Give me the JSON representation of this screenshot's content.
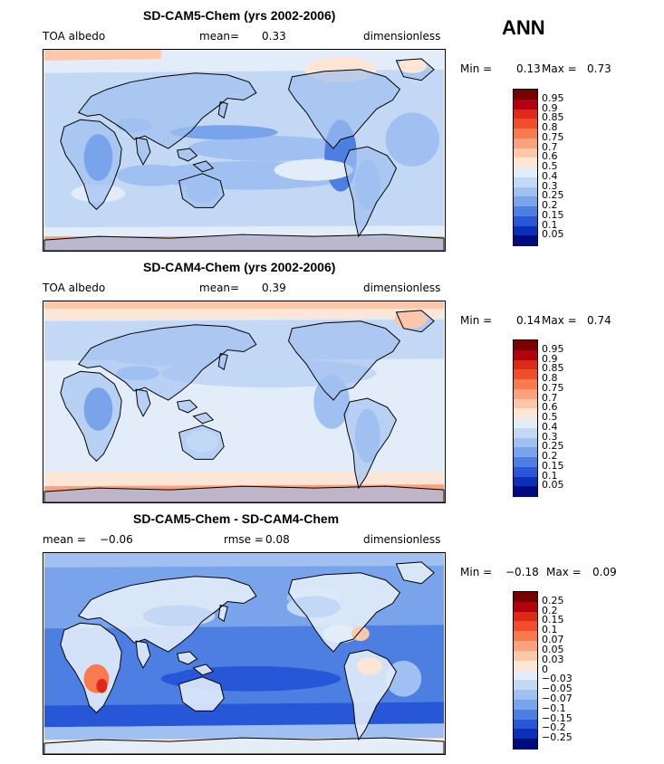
{
  "season_label": "ANN",
  "chart_data": [
    {
      "type": "heatmap",
      "title": "SD-CAM5-Chem (yrs 2002-2006)",
      "variable": "TOA albedo",
      "mean_label": "mean=",
      "mean_value": "0.33",
      "units": "dimensionless",
      "min_label": "Min =",
      "min_value": "0.13",
      "max_label": "Max =",
      "max_value": "0.73",
      "levels": [
        "0.95",
        "0.9",
        "0.85",
        "0.8",
        "0.75",
        "0.7",
        "0.6",
        "0.5",
        "0.4",
        "0.3",
        "0.25",
        "0.2",
        "0.15",
        "0.1",
        "0.05"
      ],
      "colors": [
        "#7a0000",
        "#b2000e",
        "#dd2a18",
        "#f04d2a",
        "#f97a4d",
        "#fca17e",
        "#fdc7aa",
        "#fde6d6",
        "#e2edf9",
        "#c2d8f5",
        "#9fc0f0",
        "#79a3ea",
        "#4d7fe3",
        "#2756d6",
        "#0b2fb8",
        "#000c7e"
      ],
      "field_color_order": [
        "background",
        "band_a",
        "band_b",
        "band_c",
        "band_d",
        "polar"
      ]
    },
    {
      "type": "heatmap",
      "title": "SD-CAM4-Chem (yrs 2002-2006)",
      "variable": "TOA albedo",
      "mean_label": "mean=",
      "mean_value": "0.39",
      "units": "dimensionless",
      "min_label": "Min =",
      "min_value": "0.14",
      "max_label": "Max =",
      "max_value": "0.74",
      "levels": [
        "0.95",
        "0.9",
        "0.85",
        "0.8",
        "0.75",
        "0.7",
        "0.6",
        "0.5",
        "0.4",
        "0.3",
        "0.25",
        "0.2",
        "0.15",
        "0.1",
        "0.05"
      ],
      "colors": [
        "#7a0000",
        "#b2000e",
        "#dd2a18",
        "#f04d2a",
        "#f97a4d",
        "#fca17e",
        "#fdc7aa",
        "#fde6d6",
        "#e2edf9",
        "#c2d8f5",
        "#9fc0f0",
        "#79a3ea",
        "#4d7fe3",
        "#2756d6",
        "#0b2fb8",
        "#000c7e"
      ]
    },
    {
      "type": "heatmap",
      "title": "SD-CAM5-Chem - SD-CAM4-Chem",
      "mean_label": "mean =",
      "mean_value": "−0.06",
      "rmse_label": "rmse =",
      "rmse_value": "0.08",
      "units": "dimensionless",
      "min_label": "Min =",
      "min_value": "−0.18",
      "max_label": "Max =",
      "max_value": "0.09",
      "levels": [
        "0.25",
        "0.2",
        "0.15",
        "0.1",
        "0.07",
        "0.05",
        "0.03",
        "0",
        "−0.03",
        "−0.05",
        "−0.07",
        "−0.1",
        "−0.15",
        "−0.2",
        "−0.25"
      ],
      "colors": [
        "#7a0000",
        "#b2000e",
        "#dd2a18",
        "#f04d2a",
        "#f97a4d",
        "#fca17e",
        "#fdc7aa",
        "#fde6d6",
        "#e2edf9",
        "#c2d8f5",
        "#9fc0f0",
        "#79a3ea",
        "#4d7fe3",
        "#2756d6",
        "#0b2fb8",
        "#000c7e"
      ]
    }
  ]
}
